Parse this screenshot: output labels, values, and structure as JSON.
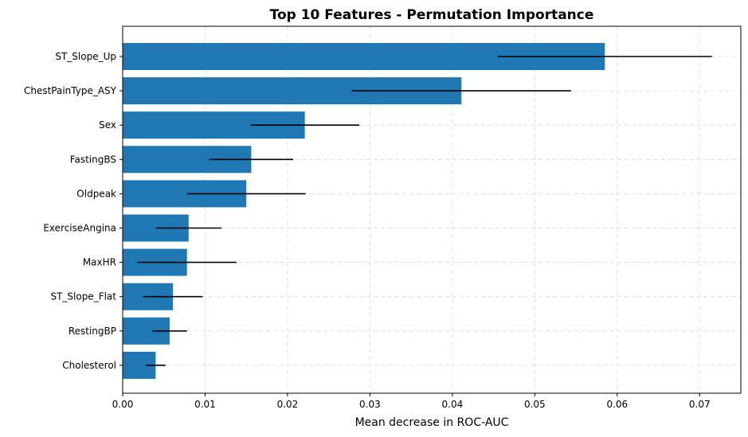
{
  "chart_data": {
    "type": "bar",
    "orientation": "horizontal",
    "title": "Top 10 Features - Permutation Importance",
    "xlabel": "Mean decrease in ROC-AUC",
    "ylabel": "",
    "xlim": [
      0,
      0.075
    ],
    "xticks": [
      0.0,
      0.01,
      0.02,
      0.03,
      0.04,
      0.05,
      0.06,
      0.07
    ],
    "xtick_labels": [
      "0.00",
      "0.01",
      "0.02",
      "0.03",
      "0.04",
      "0.05",
      "0.06",
      "0.07"
    ],
    "grid": true,
    "bar_color": "#1f77b4",
    "error_color": "#000000",
    "categories": [
      "ST_Slope_Up",
      "ChestPainType_ASY",
      "Sex",
      "FastingBS",
      "Oldpeak",
      "ExerciseAngina",
      "MaxHR",
      "ST_Slope_Flat",
      "RestingBP",
      "Cholesterol"
    ],
    "values": [
      0.0585,
      0.0411,
      0.0221,
      0.0156,
      0.015,
      0.008,
      0.0078,
      0.0061,
      0.0057,
      0.004
    ],
    "errors": [
      0.013,
      0.0133,
      0.0066,
      0.0051,
      0.0072,
      0.004,
      0.006,
      0.0036,
      0.0021,
      0.0012
    ]
  }
}
